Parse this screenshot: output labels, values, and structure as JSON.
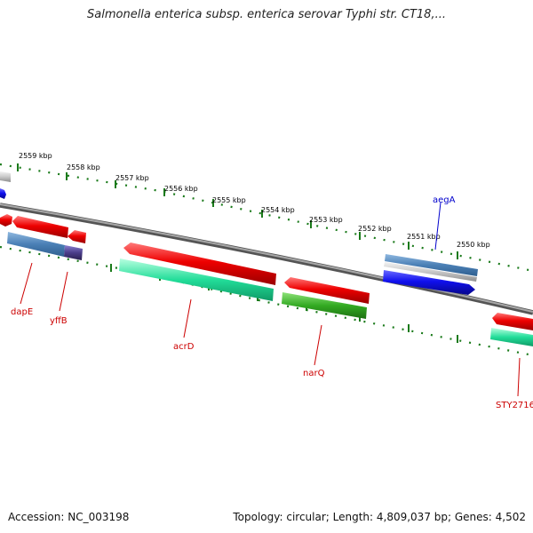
{
  "header": {
    "title": "Salmonella enterica subsp. enterica serovar Typhi str. CT18,..."
  },
  "footer": {
    "accession": "Accession: NC_003198",
    "summary": "Topology: circular; Length: 4,809,037 bp; Genes: 4,502"
  },
  "scale": {
    "ticks": [
      {
        "label": "2559 kbp"
      },
      {
        "label": "2558 kbp"
      },
      {
        "label": "2557 kbp"
      },
      {
        "label": "2556 kbp"
      },
      {
        "label": "2555 kbp"
      },
      {
        "label": "2554 kbp"
      },
      {
        "label": "2553 kbp"
      },
      {
        "label": "2552 kbp"
      },
      {
        "label": "2551 kbp"
      },
      {
        "label": "2550 kbp"
      }
    ]
  },
  "genes": {
    "labels": [
      {
        "name": "dapE"
      },
      {
        "name": "yffB"
      },
      {
        "name": "acrD"
      },
      {
        "name": "narQ"
      },
      {
        "name": "aegA"
      },
      {
        "name": "STY2716"
      }
    ]
  },
  "colors": {
    "backbone": "#808080",
    "tick_green": "#1a7a1a",
    "cds": "#ee0000",
    "rna": "#1010ee",
    "steel": "#4a7fb5",
    "aqua": "#22dd99",
    "green": "#33aa22",
    "purple": "#4b3d8a",
    "gray": "#c8c8c8",
    "label_red": "#cc0000",
    "label_blue": "#0000cc"
  }
}
